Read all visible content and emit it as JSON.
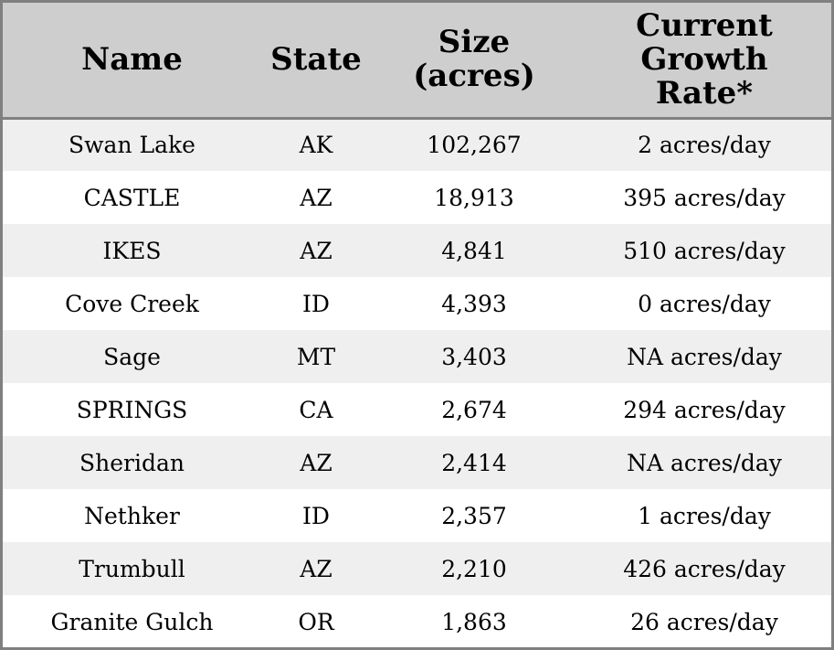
{
  "chart_data": {
    "type": "table",
    "columns": [
      "Name",
      "State",
      "Size (acres)",
      "Current Growth Rate*"
    ],
    "header_lines": [
      [
        "Name"
      ],
      [
        "State"
      ],
      [
        "Size",
        "(acres)"
      ],
      [
        "Current",
        "Growth",
        "Rate*"
      ]
    ],
    "rows": [
      [
        "Swan Lake",
        "AK",
        "102,267",
        "2 acres/day"
      ],
      [
        "CASTLE",
        "AZ",
        "18,913",
        "395 acres/day"
      ],
      [
        "IKES",
        "AZ",
        "4,841",
        "510 acres/day"
      ],
      [
        "Cove Creek",
        "ID",
        "4,393",
        "0 acres/day"
      ],
      [
        "Sage",
        "MT",
        "3,403",
        "NA acres/day"
      ],
      [
        "SPRINGS",
        "CA",
        "2,674",
        "294 acres/day"
      ],
      [
        "Sheridan",
        "AZ",
        "2,414",
        "NA acres/day"
      ],
      [
        "Nethker",
        "ID",
        "2,357",
        "1 acres/day"
      ],
      [
        "Trumbull",
        "AZ",
        "2,210",
        "426 acres/day"
      ],
      [
        "Granite Gulch",
        "OR",
        "1,863",
        "26 acres/day"
      ]
    ]
  },
  "colors": {
    "header_bg": "#cecece",
    "stripe_bg": "#efefef",
    "plain_bg": "#ffffff",
    "border": "#808080",
    "text": "#000000"
  }
}
